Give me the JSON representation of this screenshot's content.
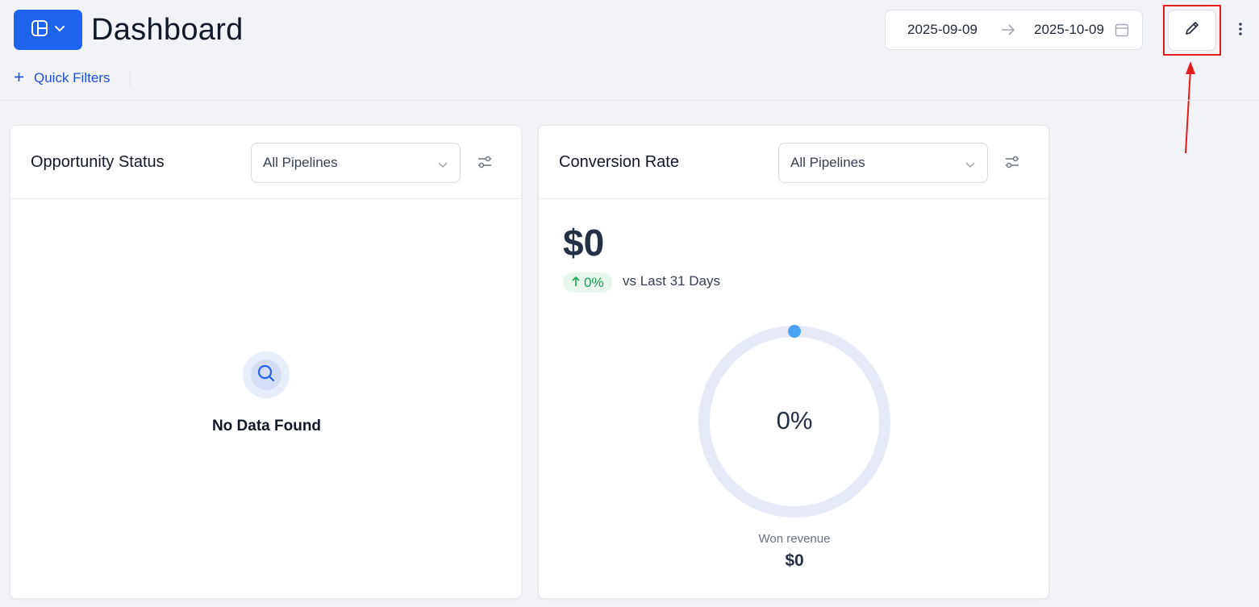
{
  "header": {
    "title": "Dashboard",
    "date_start": "2025-09-09",
    "date_end": "2025-10-09"
  },
  "filters": {
    "quick_filters_label": "Quick Filters"
  },
  "cards": [
    {
      "title": "Opportunity Status",
      "pipeline_select": "All Pipelines",
      "empty_text": "No Data Found"
    },
    {
      "title": "Conversion Rate",
      "pipeline_select": "All Pipelines",
      "value": "$0",
      "change_percent": "0%",
      "change_label": "vs Last 31 Days",
      "gauge_label": "0%",
      "gauge_level": 0,
      "won_revenue_label": "Won revenue",
      "won_revenue_value": "$0"
    }
  ],
  "colors": {
    "primary": "#1d63ed",
    "annotation": "#e11d1d",
    "positive": "#16a34a",
    "gauge_track": "#e6eaf7",
    "gauge_dot": "#4aa3f5"
  },
  "icons": [
    "layout-icon",
    "chevron-down-icon",
    "arrow-right-icon",
    "calendar-icon",
    "pencil-icon",
    "more-vertical-icon",
    "plus-icon",
    "sliders-icon",
    "search-icon",
    "arrow-up-icon"
  ]
}
